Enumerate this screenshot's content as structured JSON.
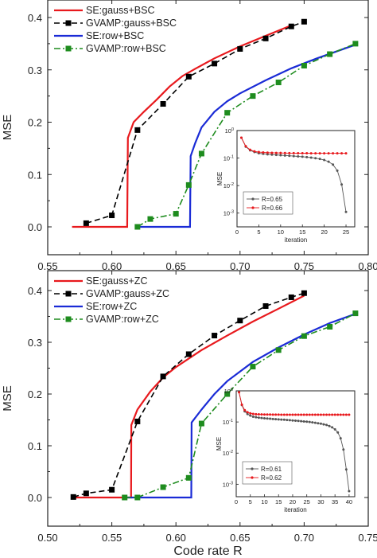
{
  "chart_data": [
    {
      "type": "line",
      "xlabel": "",
      "ylabel": "MSE",
      "xlim": [
        0.55,
        0.8
      ],
      "ylim": [
        -0.03,
        0.44
      ],
      "xticks": [
        "0.55",
        "0.60",
        "0.65",
        "0.70",
        "0.75",
        "0.80"
      ],
      "yticks": [
        "0.0",
        "0.1",
        "0.2",
        "0.3",
        "0.4"
      ],
      "legend_position": "top-left",
      "series": [
        {
          "name": "SE:gauss+BSC",
          "color": "#e8191d",
          "style": "solid",
          "marker": "none",
          "x": [
            0.569,
            0.612,
            0.6125,
            0.617,
            0.625,
            0.635,
            0.645,
            0.655,
            0.665,
            0.68,
            0.7,
            0.72,
            0.74
          ],
          "y": [
            0.0,
            0.0,
            0.17,
            0.2,
            0.22,
            0.243,
            0.268,
            0.288,
            0.302,
            0.322,
            0.345,
            0.365,
            0.385
          ]
        },
        {
          "name": "GVAMP:gauss+BSC",
          "color": "#000000",
          "style": "dash",
          "marker": "square",
          "x": [
            0.58,
            0.6,
            0.62,
            0.64,
            0.66,
            0.68,
            0.7,
            0.72,
            0.74,
            0.75
          ],
          "y": [
            0.007,
            0.022,
            0.185,
            0.235,
            0.287,
            0.312,
            0.34,
            0.36,
            0.383,
            0.392
          ]
        },
        {
          "name": "SE:row+BSC",
          "color": "#1a2bd6",
          "style": "solid",
          "marker": "none",
          "x": [
            0.62,
            0.661,
            0.6615,
            0.665,
            0.67,
            0.68,
            0.69,
            0.7,
            0.72,
            0.74,
            0.76,
            0.79
          ],
          "y": [
            0.0,
            0.0,
            0.135,
            0.16,
            0.19,
            0.22,
            0.24,
            0.255,
            0.28,
            0.303,
            0.322,
            0.348
          ]
        },
        {
          "name": "GVAMP:row+BSC",
          "color": "#1e8c1e",
          "style": "dashdot",
          "marker": "square",
          "x": [
            0.62,
            0.63,
            0.65,
            0.66,
            0.67,
            0.69,
            0.71,
            0.73,
            0.75,
            0.77,
            0.79
          ],
          "y": [
            0.0,
            0.015,
            0.025,
            0.08,
            0.14,
            0.218,
            0.25,
            0.276,
            0.308,
            0.33,
            0.35
          ]
        }
      ],
      "inset": {
        "type": "line",
        "xlabel": "iteration",
        "ylabel": "MSE",
        "xlim": [
          0,
          27
        ],
        "xticks": [
          "0",
          "5",
          "10",
          "15",
          "20",
          "25"
        ],
        "yscale": "log",
        "ylim": [
          0.0005,
          1
        ],
        "yticks": [
          {
            "v": 1,
            "label": "10",
            "exp": "0"
          },
          {
            "v": 0.1,
            "label": "10",
            "exp": "-1"
          },
          {
            "v": 0.01,
            "label": "10",
            "exp": "-2"
          },
          {
            "v": 0.001,
            "label": "10",
            "exp": "-3"
          }
        ],
        "legend_position": "bottom-left",
        "series": [
          {
            "name": "R=0.65",
            "color": "#555555",
            "marker": "circle",
            "x": [
              1,
              2,
              3,
              4,
              5,
              6,
              7,
              8,
              9,
              10,
              11,
              12,
              13,
              14,
              15,
              16,
              17,
              18,
              19,
              20,
              21,
              22,
              23,
              24,
              25
            ],
            "y": [
              0.55,
              0.26,
              0.19,
              0.165,
              0.15,
              0.142,
              0.137,
              0.133,
              0.13,
              0.127,
              0.124,
              0.121,
              0.118,
              0.115,
              0.112,
              0.108,
              0.104,
              0.099,
              0.093,
              0.085,
              0.074,
              0.058,
              0.035,
              0.011,
              0.0011
            ]
          },
          {
            "name": "R=0.66",
            "color": "#e8191d",
            "marker": "circle",
            "x": [
              1,
              2,
              3,
              4,
              5,
              6,
              7,
              8,
              9,
              10,
              11,
              12,
              13,
              14,
              15,
              16,
              17,
              18,
              19,
              20,
              21,
              22,
              23,
              24,
              25
            ],
            "y": [
              0.55,
              0.27,
              0.2,
              0.175,
              0.165,
              0.16,
              0.157,
              0.155,
              0.154,
              0.153,
              0.152,
              0.151,
              0.151,
              0.15,
              0.15,
              0.15,
              0.149,
              0.149,
              0.149,
              0.149,
              0.149,
              0.149,
              0.149,
              0.149,
              0.149
            ]
          }
        ]
      }
    },
    {
      "type": "line",
      "xlabel": "Code rate R",
      "ylabel": "MSE",
      "xlim": [
        0.5,
        0.76
      ],
      "ylim": [
        -0.02,
        0.43
      ],
      "xticks": [
        "0.50",
        "0.55",
        "0.60",
        "0.65",
        "0.70",
        "0.75"
      ],
      "yticks": [
        "0.0",
        "0.1",
        "0.2",
        "0.3",
        "0.4"
      ],
      "legend_position": "top-left",
      "series": [
        {
          "name": "SE:gauss+ZC",
          "color": "#e8191d",
          "style": "solid",
          "marker": "none",
          "x": [
            0.52,
            0.565,
            0.5652,
            0.57,
            0.58,
            0.59,
            0.6,
            0.62,
            0.64,
            0.66,
            0.68,
            0.7
          ],
          "y": [
            0.0,
            0.0,
            0.14,
            0.17,
            0.205,
            0.232,
            0.252,
            0.285,
            0.313,
            0.34,
            0.365,
            0.39
          ]
        },
        {
          "name": "GVAMP:gauss+ZC",
          "color": "#000000",
          "style": "dash",
          "marker": "square",
          "x": [
            0.52,
            0.53,
            0.55,
            0.57,
            0.59,
            0.61,
            0.63,
            0.65,
            0.67,
            0.69,
            0.7
          ],
          "y": [
            0.001,
            0.008,
            0.015,
            0.147,
            0.234,
            0.277,
            0.313,
            0.342,
            0.37,
            0.387,
            0.395
          ]
        },
        {
          "name": "SE:row+ZC",
          "color": "#1a2bd6",
          "style": "solid",
          "marker": "none",
          "x": [
            0.56,
            0.612,
            0.6122,
            0.62,
            0.63,
            0.64,
            0.66,
            0.68,
            0.7,
            0.72,
            0.74
          ],
          "y": [
            0.0,
            0.0,
            0.145,
            0.17,
            0.2,
            0.225,
            0.262,
            0.29,
            0.315,
            0.337,
            0.355
          ]
        },
        {
          "name": "GVAMP:row+ZC",
          "color": "#1e8c1e",
          "style": "dashdot",
          "marker": "square",
          "x": [
            0.56,
            0.57,
            0.59,
            0.61,
            0.62,
            0.64,
            0.66,
            0.68,
            0.7,
            0.72,
            0.74
          ],
          "y": [
            0.0,
            0.0,
            0.02,
            0.038,
            0.143,
            0.2,
            0.253,
            0.285,
            0.312,
            0.33,
            0.356
          ]
        }
      ],
      "inset": {
        "type": "line",
        "xlabel": "iteration",
        "ylabel": "MSE",
        "xlim": [
          0,
          42
        ],
        "xticks": [
          "0",
          "5",
          "10",
          "15",
          "20",
          "25",
          "30",
          "35",
          "40"
        ],
        "yscale": "log",
        "ylim": [
          0.0005,
          1
        ],
        "yticks": [
          {
            "v": 1,
            "label": "10",
            "exp": "0"
          },
          {
            "v": 0.1,
            "label": "10",
            "exp": "-1"
          },
          {
            "v": 0.01,
            "label": "10",
            "exp": "-2"
          },
          {
            "v": 0.001,
            "label": "10",
            "exp": "-3"
          }
        ],
        "legend_position": "bottom-left",
        "series": [
          {
            "name": "R=0.61",
            "color": "#555555",
            "marker": "circle",
            "x": [
              1,
              2,
              3,
              4,
              5,
              6,
              7,
              8,
              9,
              10,
              11,
              12,
              13,
              14,
              15,
              16,
              17,
              18,
              19,
              20,
              21,
              22,
              23,
              24,
              25,
              26,
              27,
              28,
              29,
              30,
              31,
              32,
              33,
              34,
              35,
              36,
              37,
              38,
              39,
              40
            ],
            "y": [
              0.9,
              0.35,
              0.22,
              0.18,
              0.16,
              0.148,
              0.142,
              0.137,
              0.134,
              0.131,
              0.129,
              0.127,
              0.125,
              0.123,
              0.121,
              0.119,
              0.118,
              0.116,
              0.114,
              0.112,
              0.11,
              0.108,
              0.106,
              0.104,
              0.102,
              0.1,
              0.097,
              0.094,
              0.091,
              0.088,
              0.084,
              0.08,
              0.074,
              0.067,
              0.058,
              0.046,
              0.03,
              0.013,
              0.003,
              0.0006
            ]
          },
          {
            "name": "R=0.62",
            "color": "#e8191d",
            "marker": "circle",
            "x": [
              1,
              2,
              3,
              4,
              5,
              6,
              7,
              8,
              9,
              10,
              11,
              12,
              13,
              14,
              15,
              16,
              17,
              18,
              19,
              20,
              21,
              22,
              23,
              24,
              25,
              26,
              27,
              28,
              29,
              30,
              31,
              32,
              33,
              34,
              35,
              36,
              37,
              38,
              39,
              40
            ],
            "y": [
              0.9,
              0.36,
              0.24,
              0.205,
              0.19,
              0.182,
              0.178,
              0.176,
              0.175,
              0.174,
              0.173,
              0.173,
              0.172,
              0.172,
              0.172,
              0.171,
              0.171,
              0.171,
              0.171,
              0.171,
              0.171,
              0.171,
              0.171,
              0.171,
              0.171,
              0.171,
              0.171,
              0.171,
              0.171,
              0.171,
              0.171,
              0.171,
              0.171,
              0.171,
              0.171,
              0.171,
              0.171,
              0.171,
              0.171,
              0.171
            ]
          }
        ]
      }
    }
  ]
}
